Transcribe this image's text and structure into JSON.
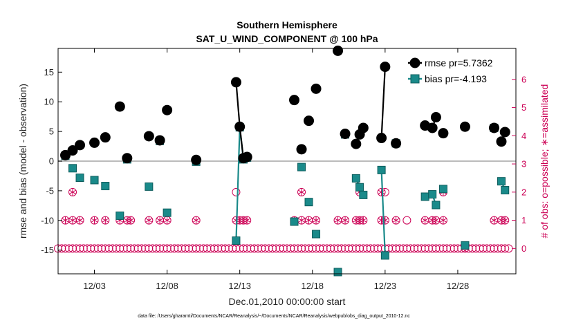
{
  "chart_data": {
    "type": "line",
    "title": [
      "Southern Hemisphere",
      "SAT_U_WIND_COMPONENT @ 100 hPa"
    ],
    "xlabel": "Dec.01,2010 00:00:00 start",
    "ylabel": "rmse and bias (model - observation)",
    "ylabel_right": "# of obs: o=possible; ∗=assimilated",
    "xlim": [
      0,
      31.5
    ],
    "ylim": [
      -19,
      19
    ],
    "ylim_right": [
      -0.9,
      7.1
    ],
    "x_ticks": [
      2.5,
      7.5,
      12.5,
      17.5,
      22.5,
      27.5
    ],
    "x_tick_labels": [
      "12/03",
      "12/08",
      "12/13",
      "12/18",
      "12/23",
      "12/28"
    ],
    "y_ticks": [
      -15,
      -10,
      -5,
      0,
      5,
      10,
      15
    ],
    "y_tick_labels": [
      "-15",
      "-10",
      "-5",
      "0",
      "5",
      "10",
      "15"
    ],
    "y_ticks_right": [
      0,
      1,
      2,
      3,
      4,
      5,
      6
    ],
    "y_tick_labels_right": [
      "0",
      "1",
      "2",
      "3",
      "4",
      "5",
      "6"
    ],
    "grid": false,
    "zero_line": true,
    "legend_position": "top-right",
    "colors": {
      "rmse": "#000000",
      "bias": "#1a8a8a",
      "obs": "#cc0055",
      "zero": "#bbbbbb"
    },
    "series": [
      {
        "name": "rmse pr=5.7362",
        "x": [
          0.5,
          1.0,
          1.5,
          2.5,
          3.25,
          4.25,
          4.75,
          5.0,
          6.25,
          7.0,
          7.5,
          9.5,
          12.25,
          12.5,
          12.75,
          13.0,
          16.25,
          16.75,
          17.25,
          17.75,
          19.25,
          19.75,
          20.5,
          20.75,
          21.0,
          22.25,
          22.5,
          23.25,
          25.25,
          25.75,
          26.0,
          26.5,
          28.0,
          30.0,
          30.5,
          30.75
        ],
        "y": [
          1.0,
          1.8,
          2.7,
          3.1,
          4.0,
          9.2,
          0.5,
          null,
          4.2,
          3.5,
          8.6,
          0.2,
          13.3,
          5.8,
          0.5,
          0.7,
          10.3,
          2.0,
          6.8,
          12.2,
          18.6,
          4.6,
          2.9,
          4.5,
          5.6,
          3.9,
          15.9,
          3.0,
          6.0,
          5.6,
          7.4,
          4.7,
          5.8,
          5.6,
          3.3,
          4.9
        ]
      },
      {
        "name": "bias pr=-4.193",
        "x": [
          0.5,
          1.0,
          1.5,
          2.5,
          3.25,
          4.25,
          4.75,
          5.0,
          6.25,
          7.0,
          7.5,
          9.5,
          12.25,
          12.5,
          12.75,
          13.0,
          16.25,
          16.75,
          17.25,
          17.75,
          19.25,
          19.75,
          20.5,
          20.75,
          21.0,
          22.25,
          22.5,
          23.25,
          25.25,
          25.75,
          26.0,
          26.5,
          28.0,
          30.0,
          30.5,
          30.75
        ],
        "y": [
          0.9,
          -1.2,
          -2.8,
          -3.2,
          -4.2,
          -9.2,
          0.3,
          null,
          -4.3,
          3.4,
          -8.7,
          -0.1,
          -13.4,
          5.7,
          0.3,
          0.6,
          -10.2,
          -1.0,
          -6.9,
          -12.3,
          -18.7,
          4.5,
          -2.9,
          -4.4,
          -5.7,
          -1.5,
          -15.9,
          3.0,
          -6.0,
          -5.6,
          -7.4,
          -4.7,
          -14.2,
          5.6,
          -3.4,
          -4.9
        ]
      }
    ],
    "obs_possible": {
      "x": [
        0,
        0.25,
        0.5,
        0.75,
        1,
        1.25,
        1.5,
        1.75,
        2,
        2.25,
        2.5,
        2.75,
        3,
        3.25,
        3.5,
        3.75,
        4,
        4.25,
        4.5,
        4.75,
        5,
        5.25,
        5.5,
        5.75,
        6,
        6.25,
        6.5,
        6.75,
        7,
        7.25,
        7.5,
        7.75,
        8,
        8.25,
        8.5,
        8.75,
        9,
        9.25,
        9.5,
        9.75,
        10,
        10.25,
        10.5,
        10.75,
        11,
        11.25,
        11.5,
        11.75,
        12,
        12.25,
        12.5,
        12.75,
        13,
        13.25,
        13.5,
        13.75,
        14,
        14.25,
        14.5,
        14.75,
        15,
        15.25,
        15.5,
        15.75,
        16,
        16.25,
        16.5,
        16.75,
        17,
        17.25,
        17.5,
        17.75,
        18,
        18.25,
        18.5,
        18.75,
        19,
        19.25,
        19.5,
        19.75,
        20,
        20.25,
        20.5,
        20.75,
        21,
        21.25,
        21.5,
        21.75,
        22,
        22.25,
        22.5,
        22.75,
        23,
        23.25,
        23.5,
        23.75,
        24,
        24.25,
        24.5,
        24.75,
        25,
        25.25,
        25.5,
        25.75,
        26,
        26.25,
        26.5,
        26.75,
        27,
        27.25,
        27.5,
        27.75,
        28,
        28.25,
        28.5,
        28.75,
        29,
        29.25,
        29.5,
        29.75,
        30,
        30.25,
        30.5,
        30.75,
        31,
        0.5,
        1.0,
        1.5,
        2.5,
        3.25,
        4.25,
        4.75,
        5.0,
        6.25,
        7.0,
        7.5,
        9.5,
        12.25,
        12.5,
        12.75,
        13.0,
        16.25,
        16.75,
        17.25,
        17.75,
        19.25,
        19.75,
        20.5,
        20.75,
        21.0,
        22.25,
        22.5,
        23.25,
        24.0,
        25.25,
        25.75,
        26.0,
        26.5,
        30.0,
        30.5,
        30.75,
        1.0,
        12.25,
        16.75,
        20.75,
        22.25,
        22.5,
        26.5
      ],
      "y": [
        0,
        0,
        0,
        0,
        0,
        0,
        0,
        0,
        0,
        0,
        0,
        0,
        0,
        0,
        0,
        0,
        0,
        0,
        0,
        0,
        0,
        0,
        0,
        0,
        0,
        0,
        0,
        0,
        0,
        0,
        0,
        0,
        0,
        0,
        0,
        0,
        0,
        0,
        0,
        0,
        0,
        0,
        0,
        0,
        0,
        0,
        0,
        0,
        0,
        0,
        0,
        0,
        0,
        0,
        0,
        0,
        0,
        0,
        0,
        0,
        0,
        0,
        0,
        0,
        0,
        0,
        0,
        0,
        0,
        0,
        0,
        0,
        0,
        0,
        0,
        0,
        0,
        0,
        0,
        0,
        0,
        0,
        0,
        0,
        0,
        0,
        0,
        0,
        0,
        0,
        0,
        0,
        0,
        0,
        0,
        0,
        0,
        0,
        0,
        0,
        0,
        0,
        0,
        0,
        0,
        0,
        0,
        0,
        0,
        0,
        0,
        0,
        0,
        0,
        0,
        0,
        0,
        0,
        0,
        0,
        0,
        0,
        0,
        0,
        0,
        1,
        1,
        1,
        1,
        1,
        1,
        1,
        1,
        1,
        1,
        1,
        1,
        1,
        1,
        1,
        1,
        1,
        1,
        1,
        1,
        1,
        1,
        1,
        1,
        1,
        1,
        1,
        1,
        1,
        1,
        1,
        1,
        1,
        1,
        1,
        1,
        2,
        2,
        2,
        2,
        2,
        2,
        2
      ]
    },
    "obs_assimilated": {
      "x": [
        0.5,
        1.0,
        1.5,
        2.5,
        3.25,
        4.25,
        4.75,
        5.0,
        6.25,
        7.0,
        7.5,
        9.5,
        12.25,
        12.5,
        12.75,
        13.0,
        16.25,
        16.75,
        17.25,
        17.75,
        19.25,
        19.75,
        20.5,
        20.75,
        21.0,
        22.25,
        22.5,
        23.25,
        25.25,
        25.75,
        26.0,
        26.5,
        28.0,
        30.0,
        30.5,
        30.75,
        1.0,
        16.75,
        20.75,
        22.25,
        26.5
      ],
      "y": [
        1,
        1,
        1,
        1,
        1,
        1,
        1,
        1,
        1,
        1,
        1,
        1,
        1,
        1,
        1,
        1,
        1,
        1,
        1,
        1,
        1,
        1,
        1,
        1,
        1,
        1,
        1,
        1,
        1,
        1,
        1,
        1,
        0,
        1,
        1,
        1,
        2,
        2,
        2,
        2,
        2
      ]
    },
    "footnote": "data file: /Users/gharamti/Documents/NCAR/Reanalysis/~/Documents/NCAR/Reanalysis/webpub/obs_diag_output_2010-12.nc"
  }
}
